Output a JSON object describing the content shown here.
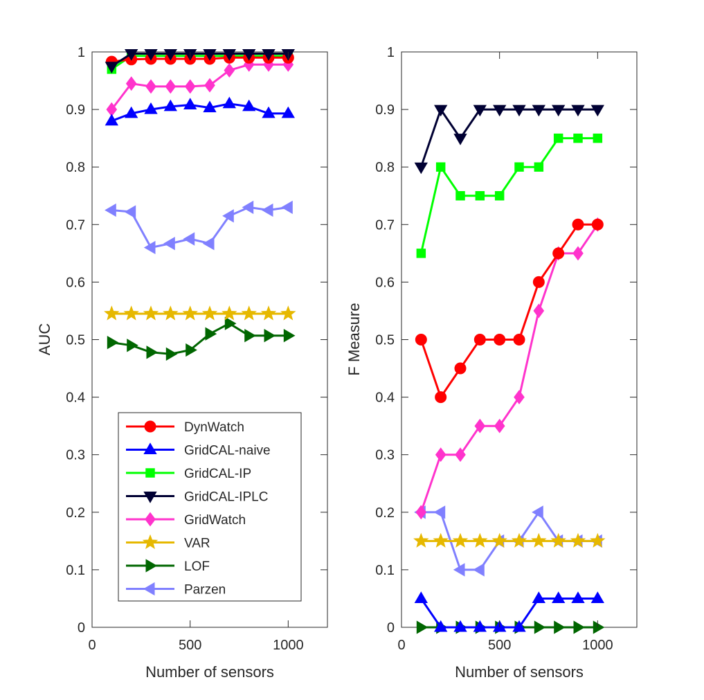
{
  "chart_data": [
    {
      "type": "line",
      "id": "auc",
      "xlabel": "Number of sensors",
      "ylabel": "AUC",
      "xlim": [
        0,
        1200
      ],
      "ylim": [
        0,
        1
      ],
      "xticks": [
        0,
        500,
        1000
      ],
      "yticks": [
        0,
        0.1,
        0.2,
        0.3,
        0.4,
        0.5,
        0.6,
        0.7,
        0.8,
        0.9,
        1
      ],
      "grid": false,
      "legend": "bottom-left",
      "x": [
        100,
        200,
        300,
        400,
        500,
        600,
        700,
        800,
        900,
        1000
      ],
      "series": [
        {
          "name": "DynWatch",
          "color": "#ff0000",
          "marker": "circle",
          "values": [
            0.983,
            0.987,
            0.988,
            0.988,
            0.988,
            0.988,
            0.99,
            0.99,
            0.99,
            0.99
          ]
        },
        {
          "name": "GridCAL-naive",
          "color": "#0000ff",
          "marker": "triangle-up",
          "values": [
            0.88,
            0.893,
            0.9,
            0.905,
            0.908,
            0.903,
            0.91,
            0.905,
            0.893,
            0.893
          ]
        },
        {
          "name": "GridCAL-IP",
          "color": "#00ff00",
          "marker": "square",
          "values": [
            0.97,
            0.993,
            0.993,
            0.993,
            0.993,
            0.993,
            0.993,
            0.993,
            0.993,
            0.993
          ]
        },
        {
          "name": "GridCAL-IPLC",
          "color": "#000033",
          "marker": "triangle-down",
          "values": [
            0.975,
            0.997,
            0.997,
            0.997,
            0.997,
            0.997,
            0.997,
            0.997,
            0.997,
            0.997
          ]
        },
        {
          "name": "GridWatch",
          "color": "#ff33cc",
          "marker": "diamond",
          "values": [
            0.9,
            0.945,
            0.94,
            0.94,
            0.94,
            0.942,
            0.968,
            0.978,
            0.978,
            0.978
          ]
        },
        {
          "name": "VAR",
          "color": "#e6b800",
          "marker": "star",
          "values": [
            0.545,
            0.545,
            0.545,
            0.545,
            0.545,
            0.545,
            0.545,
            0.545,
            0.545,
            0.545
          ]
        },
        {
          "name": "LOF",
          "color": "#006600",
          "marker": "triangle-right",
          "values": [
            0.495,
            0.49,
            0.478,
            0.475,
            0.482,
            0.51,
            0.528,
            0.507,
            0.507,
            0.507
          ]
        },
        {
          "name": "Parzen",
          "color": "#8080ff",
          "marker": "triangle-left",
          "values": [
            0.725,
            0.722,
            0.66,
            0.667,
            0.675,
            0.667,
            0.715,
            0.73,
            0.725,
            0.73
          ]
        }
      ]
    },
    {
      "type": "line",
      "id": "fmeasure",
      "xlabel": "Number of sensors",
      "ylabel": "F Measure",
      "xlim": [
        0,
        1200
      ],
      "ylim": [
        0,
        1
      ],
      "xticks": [
        0,
        500,
        1000
      ],
      "yticks": [
        0,
        0.1,
        0.2,
        0.3,
        0.4,
        0.5,
        0.6,
        0.7,
        0.8,
        0.9,
        1
      ],
      "grid": false,
      "x": [
        100,
        200,
        300,
        400,
        500,
        600,
        700,
        800,
        900,
        1000
      ],
      "series": [
        {
          "name": "DynWatch",
          "color": "#ff0000",
          "marker": "circle",
          "values": [
            0.5,
            0.4,
            0.45,
            0.5,
            0.5,
            0.5,
            0.6,
            0.65,
            0.7,
            0.7
          ]
        },
        {
          "name": "GridCAL-naive",
          "color": "#0000ff",
          "marker": "triangle-up",
          "values": [
            0.05,
            0,
            0,
            0,
            0,
            0,
            0.05,
            0.05,
            0.05,
            0.05
          ]
        },
        {
          "name": "GridCAL-IP",
          "color": "#00ff00",
          "marker": "square",
          "values": [
            0.65,
            0.8,
            0.75,
            0.75,
            0.75,
            0.8,
            0.8,
            0.85,
            0.85,
            0.85
          ]
        },
        {
          "name": "GridCAL-IPLC",
          "color": "#000033",
          "marker": "triangle-down",
          "values": [
            0.8,
            0.9,
            0.85,
            0.9,
            0.9,
            0.9,
            0.9,
            0.9,
            0.9,
            0.9
          ]
        },
        {
          "name": "GridWatch",
          "color": "#ff33cc",
          "marker": "diamond",
          "values": [
            0.2,
            0.3,
            0.3,
            0.35,
            0.35,
            0.4,
            0.55,
            0.65,
            0.65,
            0.7
          ]
        },
        {
          "name": "VAR",
          "color": "#e6b800",
          "marker": "star",
          "values": [
            0.15,
            0.15,
            0.15,
            0.15,
            0.15,
            0.15,
            0.15,
            0.15,
            0.15,
            0.15
          ]
        },
        {
          "name": "LOF",
          "color": "#006600",
          "marker": "triangle-right",
          "values": [
            0,
            0,
            0,
            0,
            0,
            0,
            0,
            0,
            0,
            0
          ]
        },
        {
          "name": "Parzen",
          "color": "#8080ff",
          "marker": "triangle-left",
          "values": [
            0.2,
            0.2,
            0.1,
            0.1,
            0.15,
            0.15,
            0.2,
            0.15,
            0.15,
            0.15
          ]
        }
      ]
    }
  ]
}
